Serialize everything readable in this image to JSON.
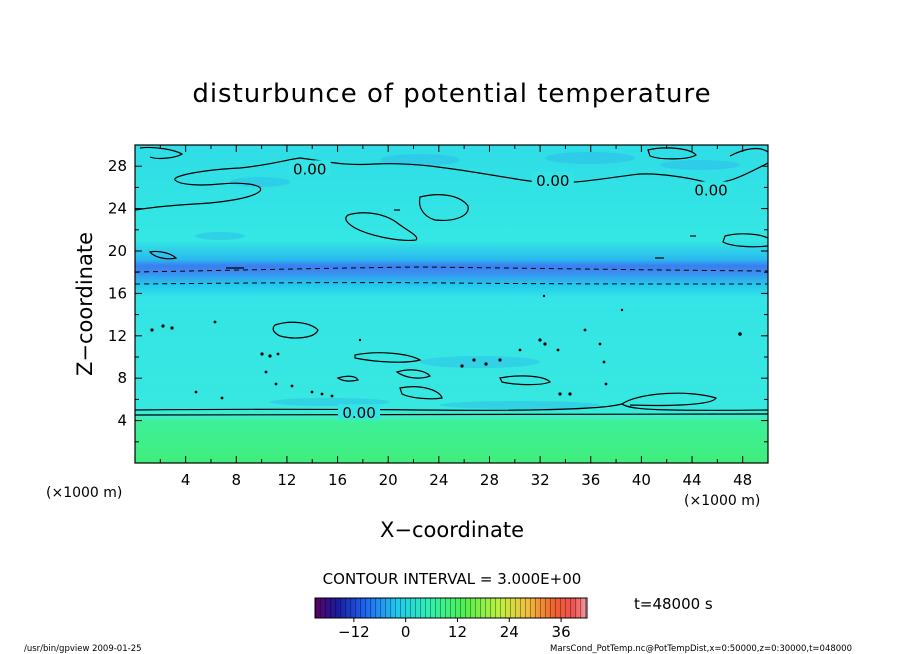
{
  "chart_data": {
    "type": "contour",
    "title": "disturbunce of potential temperature",
    "xlabel": "X−coordinate",
    "ylabel": "Z−coordinate",
    "x_unit_left": "(×1000 m)",
    "x_unit_right": "(×1000 m)",
    "xlim": [
      0,
      50
    ],
    "ylim": [
      0,
      30
    ],
    "x_ticks": [
      4,
      8,
      12,
      16,
      20,
      24,
      28,
      32,
      36,
      40,
      44,
      48
    ],
    "y_ticks": [
      4,
      8,
      12,
      16,
      20,
      24,
      28
    ],
    "contour_labels": [
      {
        "text": "0.00",
        "x": 13.8,
        "z": 27.8
      },
      {
        "text": "0.00",
        "x": 33.0,
        "z": 26.7
      },
      {
        "text": "0.00",
        "x": 45.5,
        "z": 25.8
      },
      {
        "text": "0.00",
        "x": 17.7,
        "z": 4.8
      }
    ],
    "contour_interval": "CONTOUR INTERVAL = 3.000E+00",
    "time_label": "t=48000 s",
    "colorbar": {
      "ticks": [
        "−12",
        "0",
        "12",
        "24",
        "36"
      ],
      "tick_values": [
        -12,
        0,
        12,
        24,
        36
      ],
      "range": [
        -21,
        42
      ]
    },
    "footer_left": "/usr/bin/gpview  2009-01-25",
    "footer_right": "MarsCond_PotTemp.nc@PotTempDist,x=0:50000,z=0:30000,t=048000",
    "colors": {
      "field_main": "#32e6e6",
      "field_low": "#3cf08c",
      "negative_band": "#3c8cf0"
    }
  }
}
